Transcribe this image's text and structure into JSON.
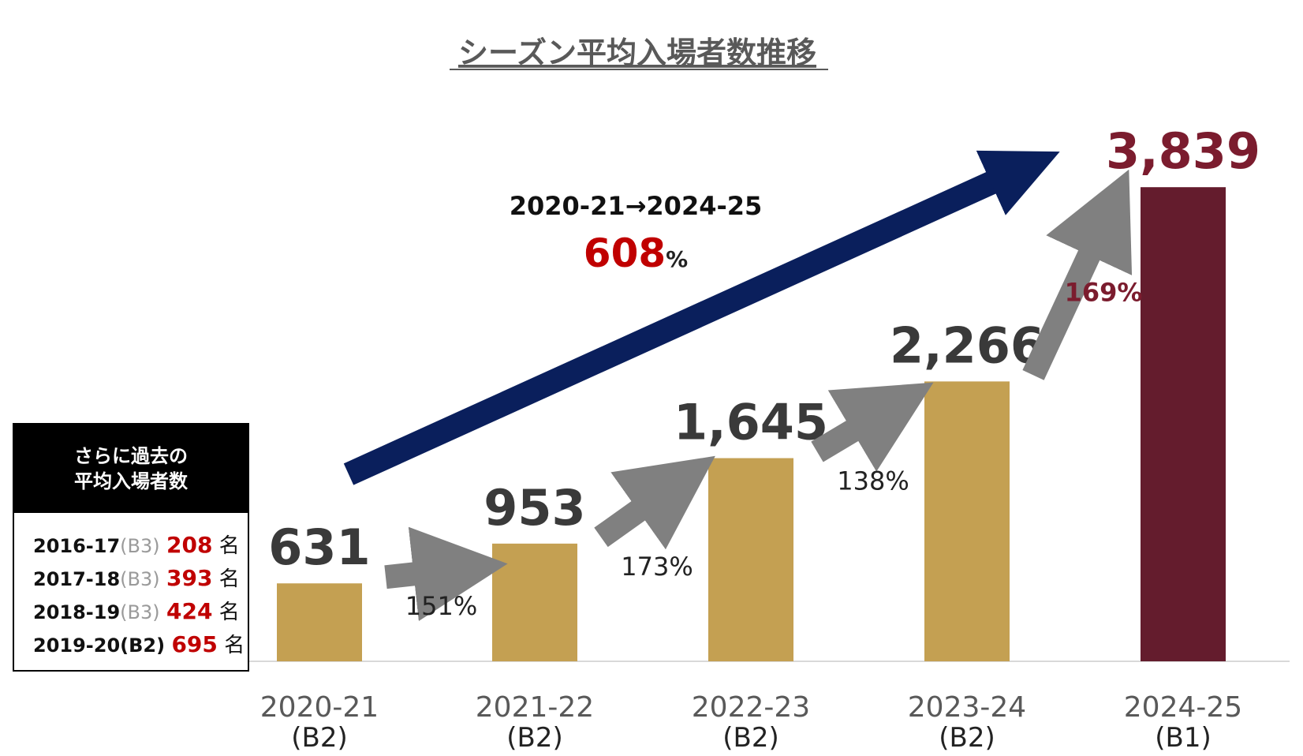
{
  "chart_data": {
    "type": "bar",
    "title": "シーズン平均入場者数推移",
    "categories": [
      "2020-21",
      "2021-22",
      "2022-23",
      "2023-24",
      "2024-25"
    ],
    "leagues": [
      "(B2)",
      "(B2)",
      "(B2)",
      "(B2)",
      "(B1)"
    ],
    "values": [
      631,
      953,
      1645,
      2266,
      3839
    ],
    "value_labels": [
      "631",
      "953",
      "1,645",
      "2,266",
      "3,839"
    ],
    "growth_labels": [
      "151%",
      "173%",
      "138%",
      "169%"
    ],
    "ylim": [
      0,
      4000
    ],
    "grid": false,
    "colors": {
      "bar": "#c4a052",
      "bar_last": "#641c2d",
      "step_arrow": "#808080",
      "overall_arrow": "#0a1f5c",
      "highlight": "#c00000"
    },
    "overall": {
      "range_label": "2020-21→2024-25",
      "value": "608",
      "unit": "%"
    }
  },
  "past": {
    "title_line1": "さらに過去の",
    "title_line2": "平均入場者数",
    "rows": [
      {
        "season": "2016-17",
        "league": "(B3)",
        "value": "208",
        "unit": "名"
      },
      {
        "season": "2017-18",
        "league": "(B3)",
        "value": "393",
        "unit": "名"
      },
      {
        "season": "2018-19",
        "league": "(B3)",
        "value": "424",
        "unit": "名"
      },
      {
        "season": "2019-20",
        "league": "(B2)",
        "value": "695",
        "unit": "名"
      }
    ]
  }
}
